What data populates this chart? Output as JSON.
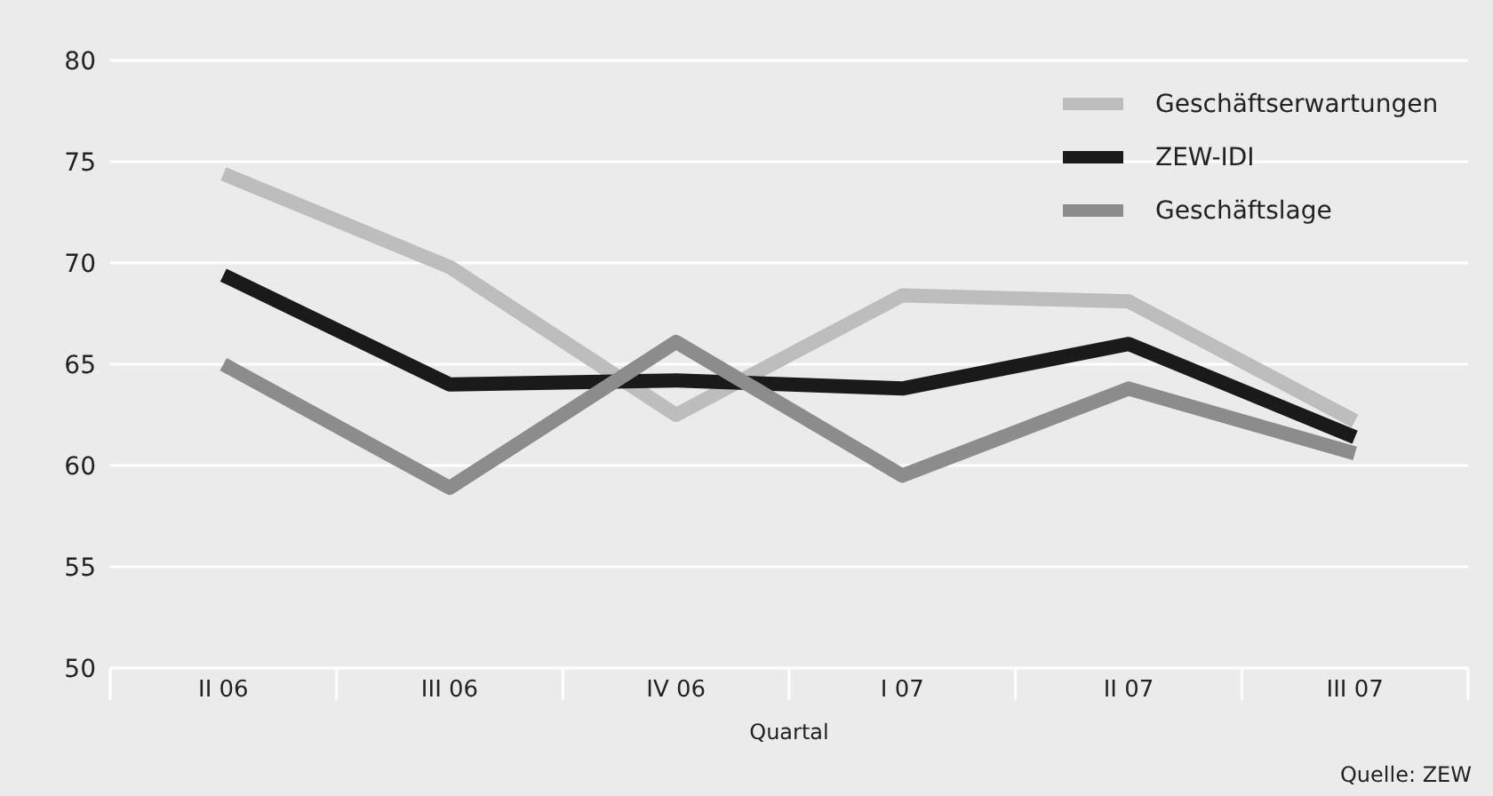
{
  "chart_data": {
    "type": "line",
    "xlabel": "Quartal",
    "categories": [
      "II 06",
      "III 06",
      "IV 06",
      "I 07",
      "II 07",
      "III 07"
    ],
    "series": [
      {
        "name": "Geschäftserwartungen",
        "color": "#bdbdbd",
        "values": [
          74.4,
          69.8,
          62.5,
          68.4,
          68.1,
          62.2
        ]
      },
      {
        "name": "ZEW-IDI",
        "color": "#1a1a1a",
        "values": [
          69.4,
          64.0,
          64.2,
          63.8,
          66.0,
          61.4
        ]
      },
      {
        "name": "Geschäftslage",
        "color": "#8c8c8c",
        "values": [
          65.0,
          58.9,
          66.1,
          59.5,
          63.8,
          60.6
        ]
      }
    ],
    "ylim": [
      50,
      80
    ],
    "yticks": [
      50,
      55,
      60,
      65,
      70,
      75,
      80
    ],
    "grid": "y",
    "legend": "top right",
    "marker": "none",
    "line_style": "solid",
    "annotations": [
      "Quelle: ZEW"
    ]
  }
}
